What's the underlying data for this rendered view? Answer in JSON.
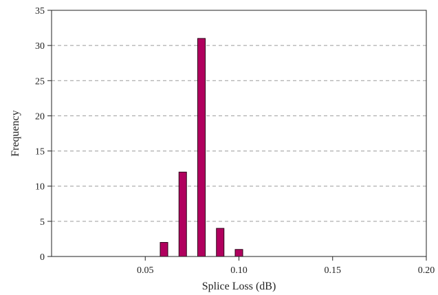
{
  "chart_data": {
    "type": "bar",
    "title": "",
    "xlabel": "Splice Loss (dB)",
    "ylabel": "Frequency",
    "xlim": [
      0.0,
      0.2
    ],
    "ylim": [
      0,
      35
    ],
    "x_ticks": [
      0.05,
      0.1,
      0.15,
      0.2
    ],
    "x_tick_labels": [
      "0.05",
      "0.10",
      "0.15",
      "0.20"
    ],
    "y_ticks": [
      0,
      5,
      10,
      15,
      20,
      25,
      30,
      35
    ],
    "y_tick_labels": [
      "0",
      "5",
      "10",
      "15",
      "20",
      "25",
      "30",
      "35"
    ],
    "grid": "horizontal dashed",
    "legend": "none",
    "bar_color": "#b0005e",
    "series": [
      {
        "x": [
          0.06,
          0.07,
          0.08,
          0.09,
          0.1
        ],
        "values": [
          2,
          12,
          31,
          4,
          1
        ]
      }
    ]
  }
}
